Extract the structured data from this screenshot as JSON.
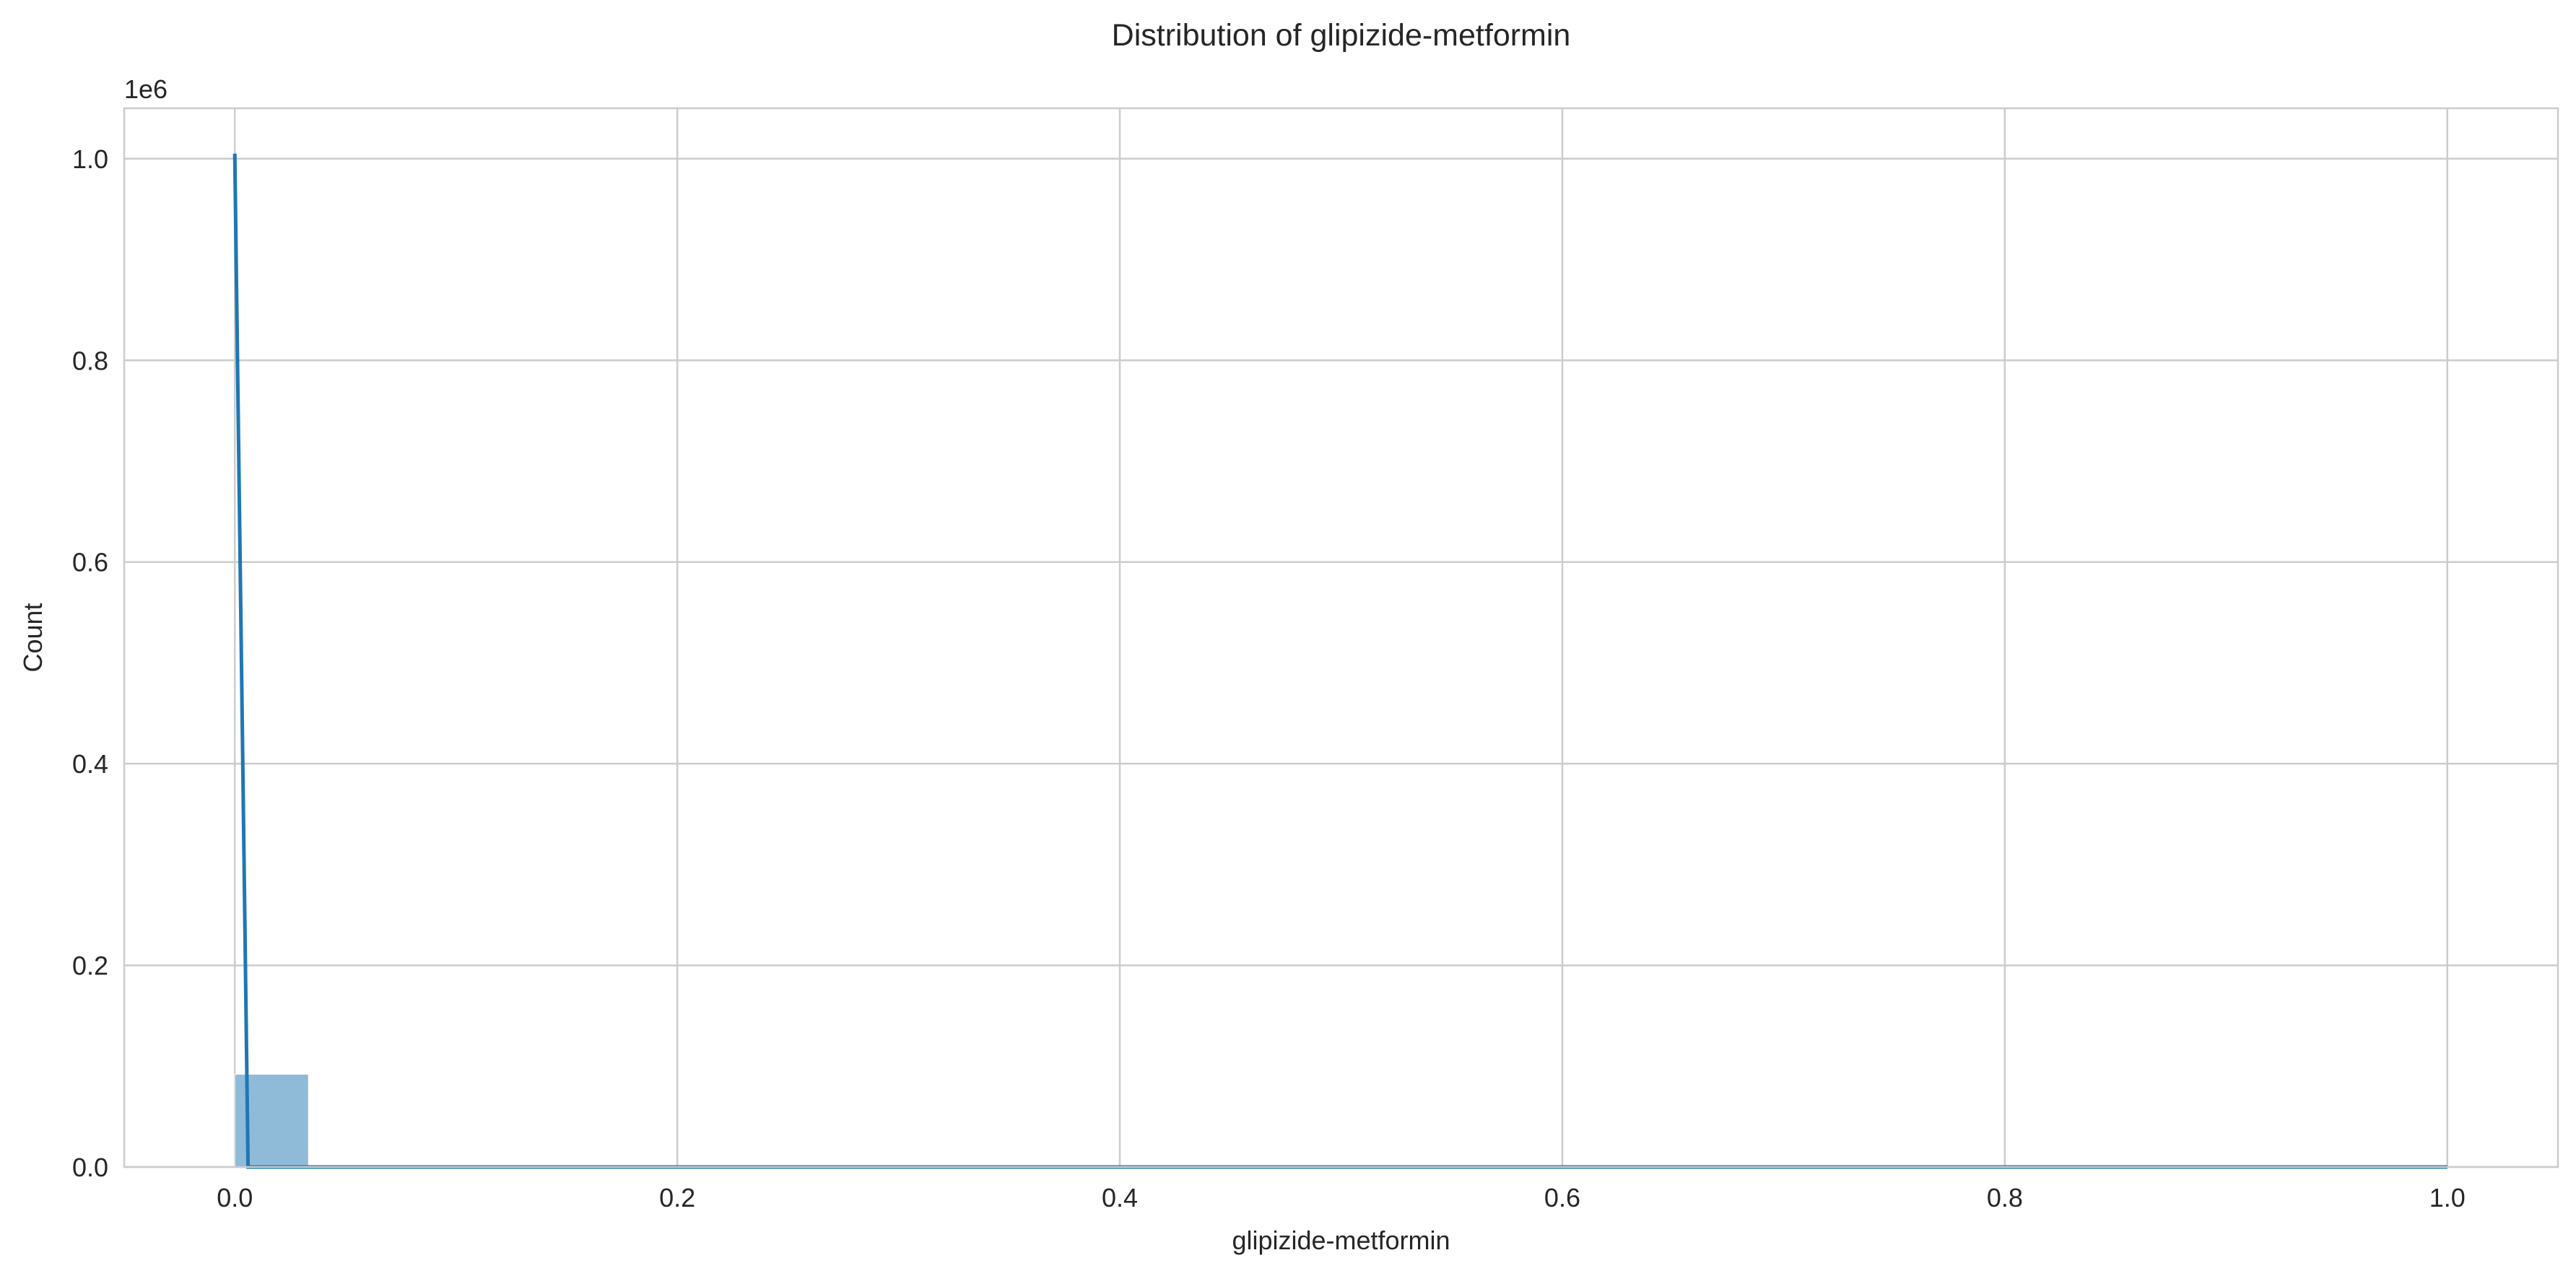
{
  "chart_data": {
    "type": "bar",
    "title": "Distribution of glipizide-metformin",
    "xlabel": "glipizide-metformin",
    "ylabel": "Count",
    "y_offset_label": "1e6",
    "xlim": [
      -0.05,
      1.05
    ],
    "ylim": [
      0,
      1.05
    ],
    "x_ticks": [
      0.0,
      0.2,
      0.4,
      0.6,
      0.8,
      1.0
    ],
    "x_tick_labels": [
      "0.0",
      "0.2",
      "0.4",
      "0.6",
      "0.8",
      "1.0"
    ],
    "y_ticks": [
      0.0,
      0.2,
      0.4,
      0.6,
      0.8,
      1.0
    ],
    "y_tick_labels": [
      "0.0",
      "0.2",
      "0.4",
      "0.6",
      "0.8",
      "1.0"
    ],
    "grid": true,
    "histogram": {
      "bin_width": 0.0333,
      "bins": [
        {
          "x0": 0.0,
          "x1": 0.0333,
          "count": 0.092
        },
        {
          "x0": 0.9667,
          "x1": 1.0,
          "count": 0.0
        }
      ],
      "color": "#8fbbd9"
    },
    "kde": {
      "color": "#1f77b4",
      "points": [
        [
          0.0,
          1.005
        ],
        [
          0.006,
          0.0
        ],
        [
          0.2,
          0.0
        ],
        [
          0.4,
          0.0
        ],
        [
          0.6,
          0.0
        ],
        [
          0.8,
          0.0
        ],
        [
          1.0,
          0.0
        ]
      ]
    }
  }
}
